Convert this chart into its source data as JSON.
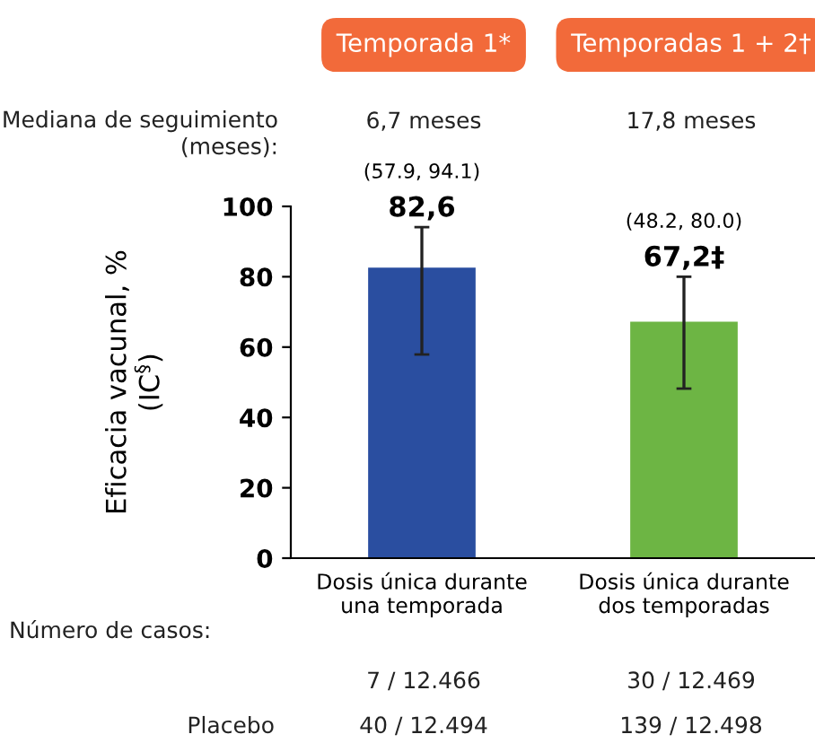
{
  "chart_data": {
    "type": "bar",
    "categories": [
      "Dosis única durante una temporada",
      "Dosis única durante dos temporadas"
    ],
    "values": [
      82.6,
      67.2
    ],
    "colors": [
      "#2a4ea0",
      "#6db544"
    ],
    "errors": [
      [
        57.9,
        94.1
      ],
      [
        48.2,
        80.0
      ]
    ],
    "value_labels": [
      "82,6",
      "67,2‡"
    ],
    "ylabel": "Eficacia vacunal, %\n(IC$^{§}$)",
    "ylim": [
      0,
      100
    ],
    "yticks": [
      0,
      20,
      40,
      60,
      80,
      100
    ],
    "grid": false,
    "legend": false,
    "annotations": [
      "Temporada 1*",
      "Temporadas 1 + 2†",
      "Mediana de seguimiento\n(meses):",
      "6,7 meses",
      "17,8 meses",
      "(57.9, 94.1)",
      "(48.2, 80.0)",
      "Número de casos:",
      "7 / 12.466",
      "30 / 12.469",
      "Placebo",
      "40 / 12.494",
      "139 / 12.498"
    ]
  }
}
